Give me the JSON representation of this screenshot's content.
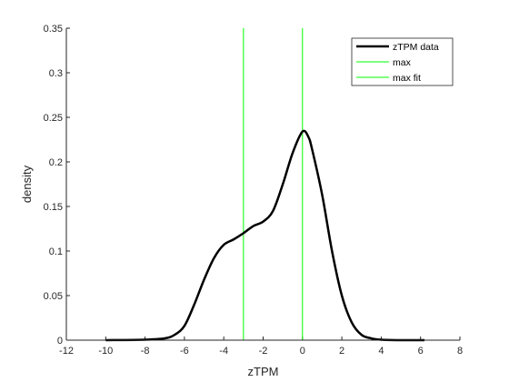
{
  "chart_data": {
    "type": "line",
    "xlabel": "zTPM",
    "ylabel": "density",
    "xlim": [
      -12,
      8
    ],
    "ylim": [
      0,
      0.35
    ],
    "x_ticks": [
      -12,
      -10,
      -8,
      -6,
      -4,
      -2,
      0,
      2,
      4,
      6,
      8
    ],
    "y_ticks": [
      0,
      0.05,
      0.1,
      0.15,
      0.2,
      0.25,
      0.3,
      0.35
    ],
    "x_tick_labels": [
      "-12",
      "-10",
      "-8",
      "-6",
      "-4",
      "-2",
      "0",
      "2",
      "4",
      "6",
      "8"
    ],
    "y_tick_labels": [
      "0",
      "0.05",
      "0.1",
      "0.15",
      "0.2",
      "0.25",
      "0.3",
      "0.35"
    ],
    "grid": false,
    "legend_position": "top-right",
    "series": [
      {
        "name": "zTPM data",
        "kind": "curve",
        "color": "#000000",
        "x": [
          -10,
          -8,
          -7,
          -6.5,
          -6,
          -5.5,
          -5,
          -4.5,
          -4,
          -3.5,
          -3,
          -2.5,
          -2,
          -1.5,
          -1,
          -0.5,
          0,
          0.3,
          0.5,
          1,
          1.5,
          2,
          2.5,
          3,
          3.5,
          4,
          5,
          6.2
        ],
        "y": [
          0,
          0.0005,
          0.002,
          0.006,
          0.016,
          0.04,
          0.068,
          0.092,
          0.107,
          0.113,
          0.12,
          0.128,
          0.133,
          0.145,
          0.175,
          0.21,
          0.234,
          0.228,
          0.213,
          0.163,
          0.1,
          0.05,
          0.02,
          0.006,
          0.002,
          0.0005,
          0,
          0
        ]
      },
      {
        "name": "max",
        "kind": "vline",
        "color": "#00ff00",
        "x": -3
      },
      {
        "name": "max fit",
        "kind": "vline",
        "color": "#00ff00",
        "x": 0
      }
    ]
  }
}
